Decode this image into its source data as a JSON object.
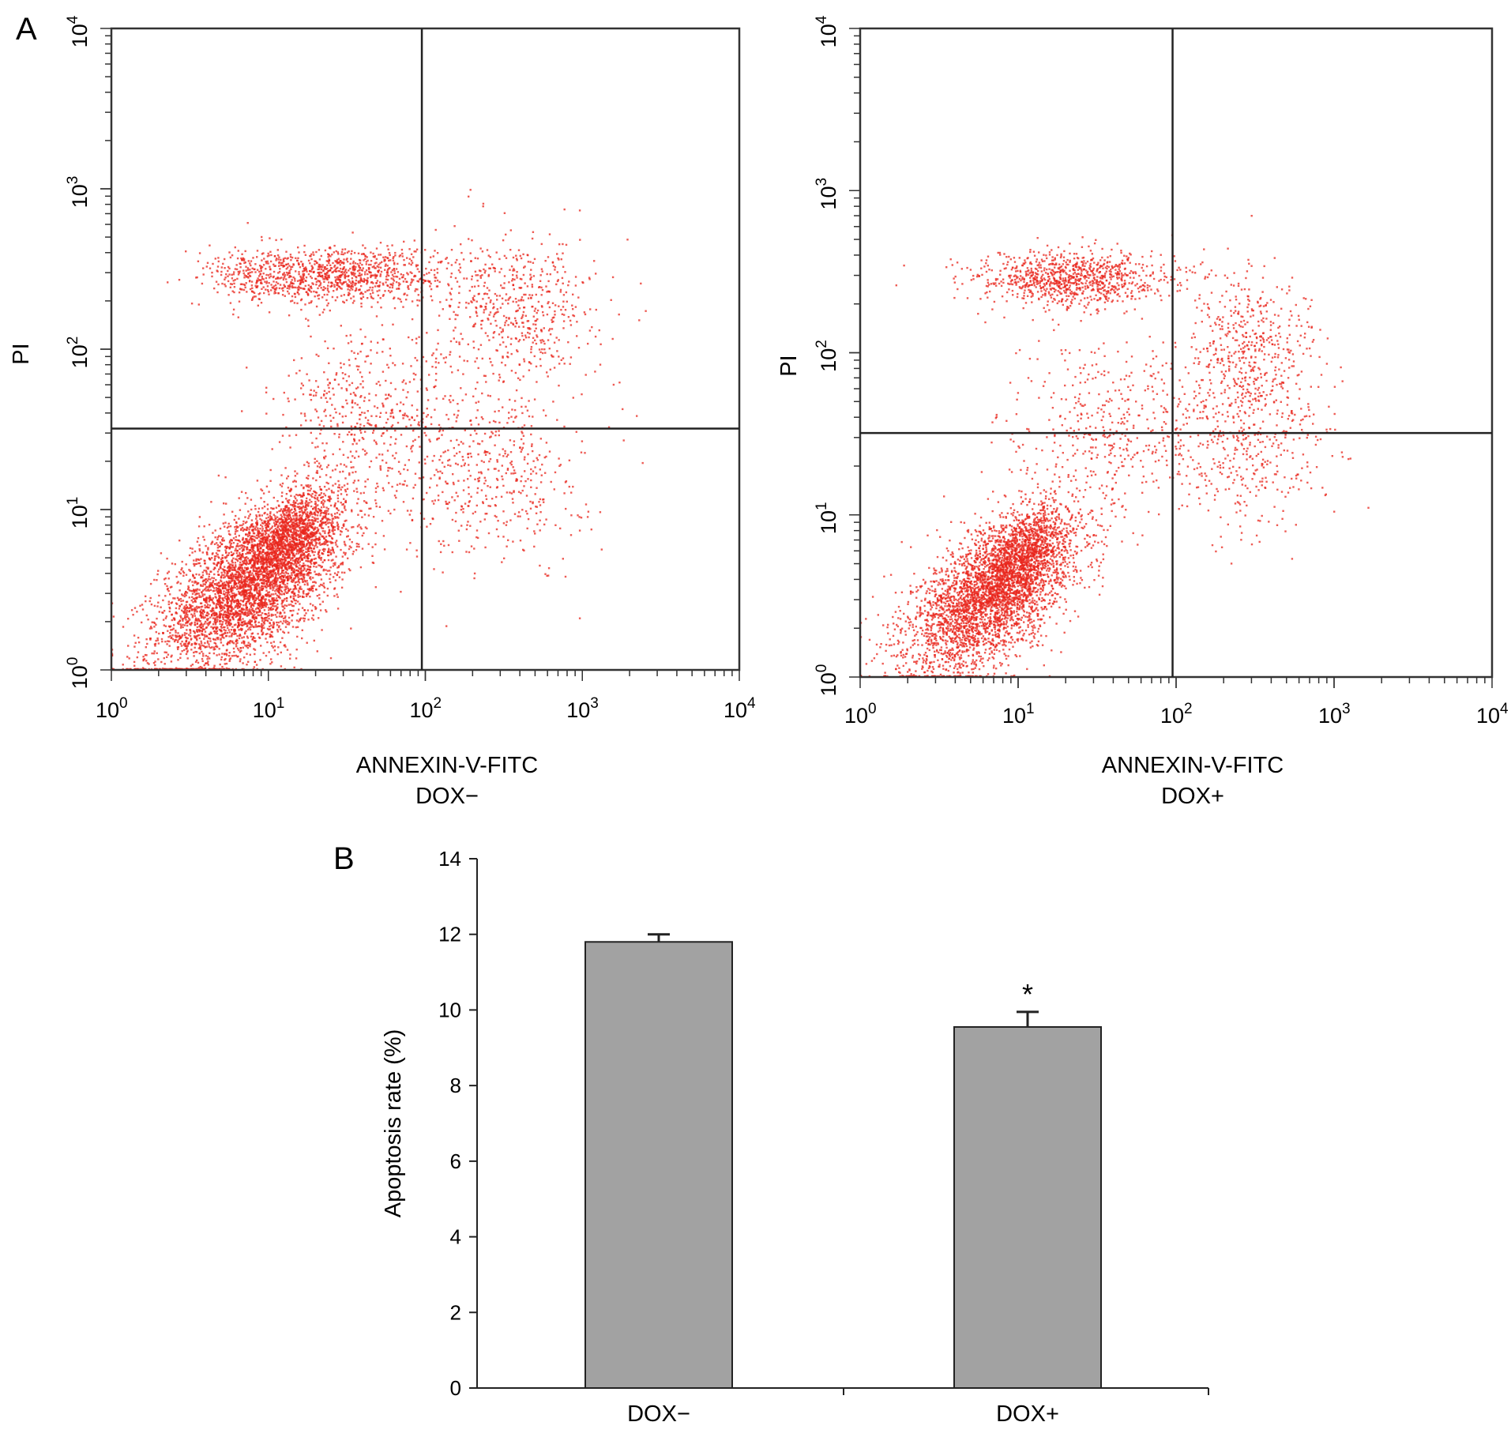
{
  "panel_a_label": "A",
  "panel_b_label": "B",
  "chart_data": [
    {
      "type": "scatter",
      "panel": "A",
      "title": "",
      "xlabel": "ANNEXIN-V-FITC",
      "ylabel": "PI",
      "condition": "DOX−",
      "xscale": "log",
      "yscale": "log",
      "xlim": [
        1,
        10000
      ],
      "ylim": [
        1,
        10000
      ],
      "x_ticks": [
        {
          "base": "10",
          "exp": "0"
        },
        {
          "base": "10",
          "exp": "1"
        },
        {
          "base": "10",
          "exp": "2"
        },
        {
          "base": "10",
          "exp": "3"
        },
        {
          "base": "10",
          "exp": "4"
        }
      ],
      "y_ticks": [
        {
          "base": "10",
          "exp": "0"
        },
        {
          "base": "10",
          "exp": "1"
        },
        {
          "base": "10",
          "exp": "2"
        },
        {
          "base": "10",
          "exp": "3"
        },
        {
          "base": "10",
          "exp": "4"
        }
      ],
      "quadrant_gates": {
        "x": 95,
        "y": 32
      },
      "point_color": "#e8261c",
      "populations": [
        {
          "center": [
            8,
            3.5
          ],
          "spread_log": [
            0.3,
            0.27
          ],
          "corr": 0.6,
          "count": 4200
        },
        {
          "center": [
            14,
            7
          ],
          "spread_log": [
            0.14,
            0.14
          ],
          "corr": 0.5,
          "count": 900
        },
        {
          "center": [
            30,
            290
          ],
          "spread_log": [
            0.32,
            0.09
          ],
          "corr": 0,
          "count": 900
        },
        {
          "center": [
            9,
            280
          ],
          "spread_log": [
            0.2,
            0.09
          ],
          "corr": 0,
          "count": 250
        },
        {
          "center": [
            380,
            180
          ],
          "spread_log": [
            0.25,
            0.22
          ],
          "corr": 0,
          "count": 550
        },
        {
          "center": [
            260,
            18
          ],
          "spread_log": [
            0.3,
            0.3
          ],
          "corr": 0,
          "count": 520
        },
        {
          "center": [
            45,
            40
          ],
          "spread_log": [
            0.3,
            0.25
          ],
          "corr": 0,
          "count": 450
        }
      ]
    },
    {
      "type": "scatter",
      "panel": "A",
      "title": "",
      "xlabel": "ANNEXIN-V-FITC",
      "ylabel": "PI",
      "condition": "DOX+",
      "xscale": "log",
      "yscale": "log",
      "xlim": [
        1,
        10000
      ],
      "ylim": [
        1,
        10000
      ],
      "x_ticks": [
        {
          "base": "10",
          "exp": "0"
        },
        {
          "base": "10",
          "exp": "1"
        },
        {
          "base": "10",
          "exp": "2"
        },
        {
          "base": "10",
          "exp": "3"
        },
        {
          "base": "10",
          "exp": "4"
        }
      ],
      "y_ticks": [
        {
          "base": "10",
          "exp": "0"
        },
        {
          "base": "10",
          "exp": "1"
        },
        {
          "base": "10",
          "exp": "2"
        },
        {
          "base": "10",
          "exp": "3"
        },
        {
          "base": "10",
          "exp": "4"
        }
      ],
      "quadrant_gates": {
        "x": 95,
        "y": 32
      },
      "point_color": "#e8261c",
      "populations": [
        {
          "center": [
            7,
            3.3
          ],
          "spread_log": [
            0.27,
            0.25
          ],
          "corr": 0.6,
          "count": 3600
        },
        {
          "center": [
            11,
            6
          ],
          "spread_log": [
            0.12,
            0.13
          ],
          "corr": 0.5,
          "count": 700
        },
        {
          "center": [
            22,
            280
          ],
          "spread_log": [
            0.3,
            0.09
          ],
          "corr": 0,
          "count": 950
        },
        {
          "center": [
            300,
            100
          ],
          "spread_log": [
            0.22,
            0.25
          ],
          "corr": 0,
          "count": 520
        },
        {
          "center": [
            280,
            25
          ],
          "spread_log": [
            0.28,
            0.25
          ],
          "corr": 0,
          "count": 380
        },
        {
          "center": [
            35,
            35
          ],
          "spread_log": [
            0.3,
            0.25
          ],
          "corr": 0,
          "count": 400
        }
      ]
    },
    {
      "type": "bar",
      "panel": "B",
      "title": "",
      "xlabel": "",
      "ylabel": "Apoptosis rate (%)",
      "categories": [
        "DOX−",
        "DOX+"
      ],
      "values": [
        11.8,
        9.55
      ],
      "errors": [
        0.2,
        0.4
      ],
      "significance": [
        "",
        "*"
      ],
      "ylim": [
        0,
        14
      ],
      "yticks": [
        "0",
        "2",
        "4",
        "6",
        "8",
        "10",
        "12",
        "14"
      ],
      "bar_color": "#a2a2a2"
    }
  ]
}
